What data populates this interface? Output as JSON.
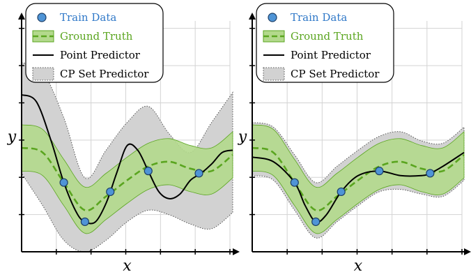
{
  "legend": {
    "train": "Train Data",
    "truth": "Ground Truth",
    "point": "Point Predictor",
    "cp": "CP Set Predictor"
  },
  "colors": {
    "train_marker": "#4f94d6",
    "train_text": "#2f78c8",
    "truth_line": "#5aa51f",
    "truth_band": "#b3d98c",
    "truth_text": "#5aa51f",
    "cp_band": "#d2d2d2",
    "predictor_line": "#000000",
    "grid": "#d3d3d3"
  },
  "chart_data": [
    {
      "type": "line",
      "xlabel": "x",
      "ylabel": "y",
      "xlim": [
        0,
        10
      ],
      "ylim": [
        0,
        10
      ],
      "grid": true,
      "legend_position": "top-left",
      "train_points": {
        "x": [
          2.0,
          3.0,
          4.2,
          6.0,
          8.4
        ],
        "y": [
          3.0,
          1.3,
          2.6,
          3.5,
          3.4
        ]
      },
      "series": [
        {
          "name": "Ground Truth",
          "x": [
            0.0,
            1.0,
            2.0,
            3.0,
            4.0,
            5.0,
            6.0,
            7.0,
            8.0,
            9.0,
            10.0
          ],
          "y": [
            4.5,
            4.3,
            3.0,
            1.8,
            2.4,
            3.1,
            3.7,
            3.9,
            3.6,
            3.5,
            4.2
          ],
          "band": [
            1.0,
            1.0,
            1.0,
            1.0,
            1.0,
            1.0,
            1.0,
            1.0,
            1.0,
            1.0,
            1.0
          ]
        },
        {
          "name": "Point Predictor",
          "x": [
            0.0,
            0.7,
            1.4,
            2.0,
            2.6,
            3.0,
            3.5,
            4.0,
            4.5,
            5.0,
            5.5,
            6.0,
            6.5,
            7.0,
            7.5,
            8.0,
            8.5,
            9.0,
            9.5,
            10.0
          ],
          "y": [
            6.8,
            6.5,
            4.8,
            3.0,
            1.7,
            1.3,
            1.3,
            2.1,
            3.4,
            4.6,
            4.4,
            3.5,
            2.6,
            2.3,
            2.5,
            3.1,
            3.4,
            3.8,
            4.3,
            4.4
          ]
        },
        {
          "name": "CP Set Predictor",
          "x": [
            0.0,
            1.0,
            2.0,
            3.0,
            4.0,
            5.0,
            6.0,
            7.0,
            8.0,
            9.0,
            10.0
          ],
          "lower": [
            3.4,
            2.0,
            0.5,
            0.0,
            0.5,
            1.3,
            1.8,
            1.6,
            1.2,
            1.0,
            1.7
          ],
          "upper": [
            8.2,
            7.8,
            5.8,
            3.2,
            4.4,
            5.6,
            6.3,
            5.1,
            4.3,
            5.6,
            6.9
          ]
        }
      ]
    },
    {
      "type": "line",
      "xlabel": "x",
      "ylabel": "y",
      "xlim": [
        0,
        10
      ],
      "ylim": [
        0,
        10
      ],
      "grid": true,
      "legend_position": "top-left",
      "train_points": {
        "x": [
          2.0,
          3.0,
          4.2,
          6.0,
          8.4
        ],
        "y": [
          3.0,
          1.3,
          2.6,
          3.5,
          3.4
        ]
      },
      "series": [
        {
          "name": "Ground Truth",
          "x": [
            0.0,
            1.0,
            2.0,
            3.0,
            4.0,
            5.0,
            6.0,
            7.0,
            8.0,
            9.0,
            10.0
          ],
          "y": [
            4.5,
            4.3,
            3.0,
            1.8,
            2.4,
            3.1,
            3.7,
            3.9,
            3.6,
            3.5,
            4.2
          ],
          "band": [
            1.0,
            1.0,
            1.0,
            1.0,
            1.0,
            1.0,
            1.0,
            1.0,
            1.0,
            1.0,
            1.0
          ]
        },
        {
          "name": "Point Predictor",
          "x": [
            0.0,
            1.0,
            2.0,
            2.5,
            3.0,
            3.5,
            4.2,
            5.0,
            6.0,
            7.0,
            8.0,
            8.4,
            9.0,
            10.0
          ],
          "y": [
            4.1,
            3.9,
            3.0,
            2.0,
            1.3,
            1.6,
            2.6,
            3.3,
            3.5,
            3.3,
            3.3,
            3.4,
            3.7,
            4.3
          ]
        },
        {
          "name": "CP Set Predictor",
          "x": [
            0.0,
            1.0,
            2.0,
            3.0,
            4.0,
            5.0,
            6.0,
            7.0,
            8.0,
            9.0,
            10.0
          ],
          "lower": [
            3.3,
            3.1,
            1.8,
            0.6,
            1.3,
            2.0,
            2.6,
            2.7,
            2.5,
            2.4,
            3.1
          ],
          "upper": [
            5.6,
            5.4,
            4.2,
            3.0,
            3.7,
            4.4,
            5.0,
            5.2,
            4.8,
            4.7,
            5.4
          ]
        }
      ]
    }
  ]
}
